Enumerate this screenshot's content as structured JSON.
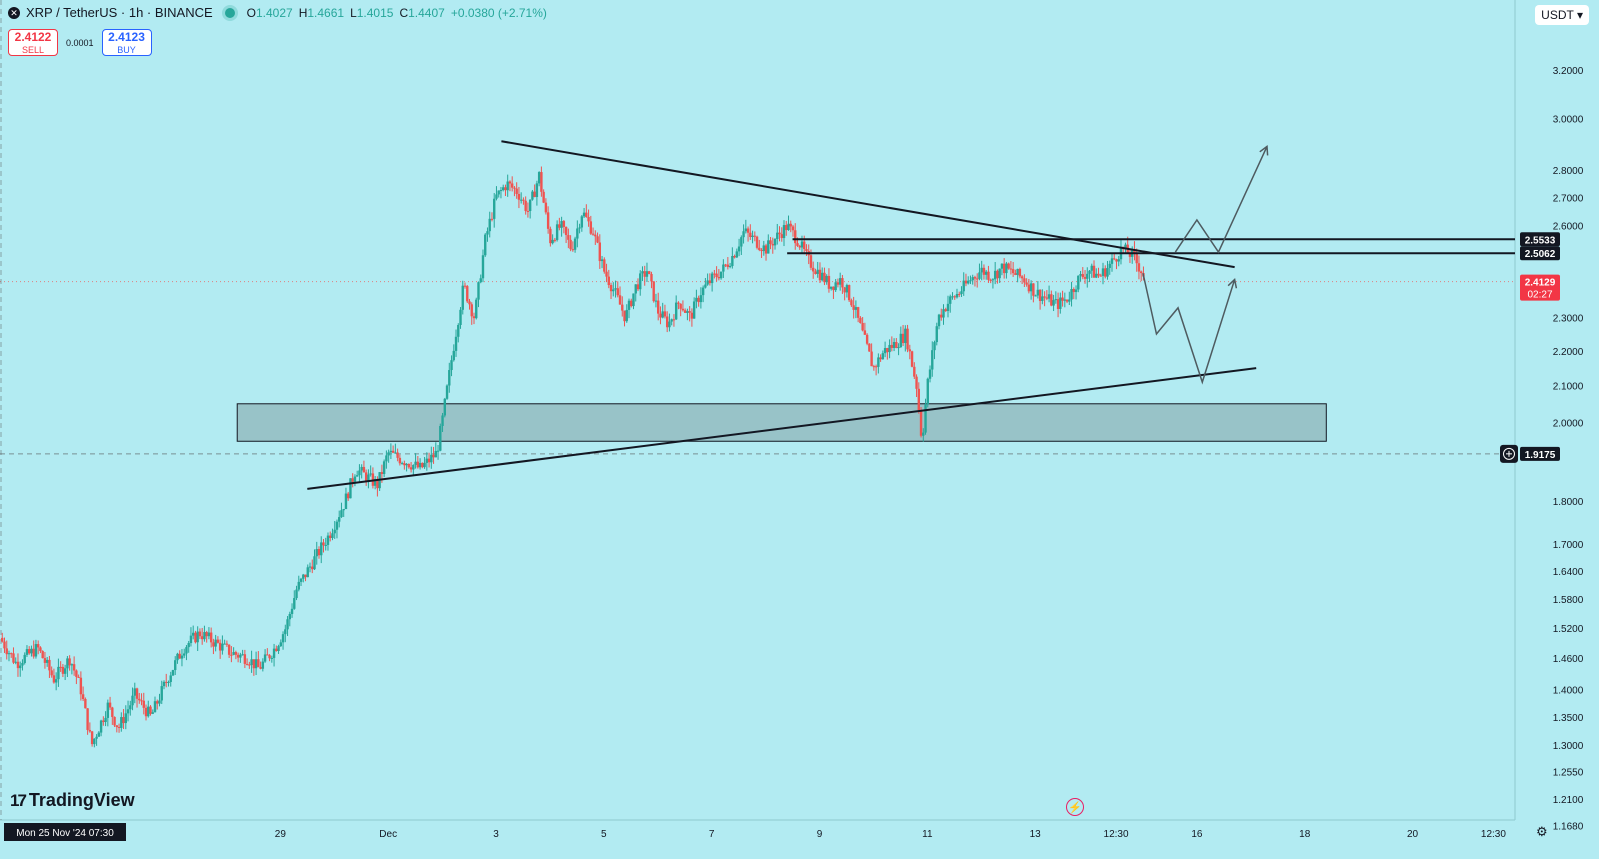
{
  "header": {
    "symbol_icon": "x-icon",
    "title": "XRP / TetherUS · 1h · BINANCE",
    "ohlc": [
      {
        "k": "O",
        "v": "1.4027"
      },
      {
        "k": "H",
        "v": "1.4661"
      },
      {
        "k": "L",
        "v": "1.4015"
      },
      {
        "k": "C",
        "v": "1.4407"
      },
      {
        "k": "",
        "v": "+0.0380 (+2.71%)"
      }
    ]
  },
  "trade": {
    "sell_price": "2.4122",
    "sell_label": "SELL",
    "spread": "0.0001",
    "buy_price": "2.4123",
    "buy_label": "BUY"
  },
  "currency": "USDT",
  "branding": "TradingView",
  "colors": {
    "background": "#b2ebf2",
    "up": "#26a69a",
    "down": "#ef5350",
    "line": "#131722",
    "zone": "#8fb5b9"
  },
  "chart_data": {
    "type": "candlestick",
    "y_scale": "log",
    "ylim": [
      1.15,
      3.3
    ],
    "y_ticks": [
      {
        "v": 3.2,
        "label": "3.2000"
      },
      {
        "v": 3.0,
        "label": "3.0000"
      },
      {
        "v": 2.8,
        "label": "2.8000"
      },
      {
        "v": 2.7,
        "label": "2.7000"
      },
      {
        "v": 2.6,
        "label": "2.6000"
      },
      {
        "v": 2.3,
        "label": "2.3000"
      },
      {
        "v": 2.2,
        "label": "2.2000"
      },
      {
        "v": 2.1,
        "label": "2.1000"
      },
      {
        "v": 2.0,
        "label": "2.0000"
      },
      {
        "v": 1.8,
        "label": "1.8000"
      },
      {
        "v": 1.7,
        "label": "1.7000"
      },
      {
        "v": 1.64,
        "label": "1.6400"
      },
      {
        "v": 1.58,
        "label": "1.5800"
      },
      {
        "v": 1.52,
        "label": "1.5200"
      },
      {
        "v": 1.46,
        "label": "1.4600"
      },
      {
        "v": 1.4,
        "label": "1.4000"
      },
      {
        "v": 1.35,
        "label": "1.3500"
      },
      {
        "v": 1.3,
        "label": "1.3000"
      },
      {
        "v": 1.255,
        "label": "1.2550"
      },
      {
        "v": 1.21,
        "label": "1.2100"
      },
      {
        "v": 1.168,
        "label": "1.1680"
      }
    ],
    "x_range": [
      -1.2,
      26.9
    ],
    "x_ticks": [
      {
        "v": 4,
        "label": "29"
      },
      {
        "v": 6,
        "label": "Dec"
      },
      {
        "v": 8,
        "label": "3"
      },
      {
        "v": 10,
        "label": "5"
      },
      {
        "v": 12,
        "label": "7"
      },
      {
        "v": 14,
        "label": "9"
      },
      {
        "v": 16,
        "label": "11"
      },
      {
        "v": 18,
        "label": "13"
      },
      {
        "v": 19.5,
        "label": "12:30"
      },
      {
        "v": 21,
        "label": "16"
      },
      {
        "v": 23,
        "label": "18"
      },
      {
        "v": 25,
        "label": "20"
      },
      {
        "v": 26.5,
        "label": "12:30"
      }
    ],
    "x_unit": "days from 25 Nov 2024 07:30",
    "date_badge": "Mon 25 Nov '24   07:30",
    "price_labels": [
      {
        "v": 2.5533,
        "label": "2.5533",
        "style": "dark"
      },
      {
        "v": 2.5062,
        "label": "2.5062",
        "style": "dark"
      },
      {
        "v": 2.4129,
        "label": "2.4129",
        "sub": "02:27",
        "style": "red"
      },
      {
        "v": 1.9175,
        "label": "1.9175",
        "style": "dark"
      }
    ],
    "current_price": 2.4129,
    "crosshair_price": 1.9175,
    "price_path": [
      [
        -1.2,
        1.5
      ],
      [
        -0.9,
        1.45
      ],
      [
        -0.5,
        1.48
      ],
      [
        -0.2,
        1.42
      ],
      [
        0.1,
        1.46
      ],
      [
        0.3,
        1.4
      ],
      [
        0.5,
        1.3
      ],
      [
        0.8,
        1.37
      ],
      [
        1.0,
        1.33
      ],
      [
        1.3,
        1.39
      ],
      [
        1.6,
        1.35
      ],
      [
        1.9,
        1.42
      ],
      [
        2.2,
        1.48
      ],
      [
        2.5,
        1.51
      ],
      [
        2.8,
        1.49
      ],
      [
        3.1,
        1.47
      ],
      [
        3.4,
        1.46
      ],
      [
        3.6,
        1.44
      ],
      [
        3.9,
        1.48
      ],
      [
        4.1,
        1.52
      ],
      [
        4.3,
        1.6
      ],
      [
        4.6,
        1.66
      ],
      [
        4.9,
        1.72
      ],
      [
        5.2,
        1.8
      ],
      [
        5.4,
        1.88
      ],
      [
        5.6,
        1.86
      ],
      [
        5.8,
        1.84
      ],
      [
        6.0,
        1.92
      ],
      [
        6.3,
        1.9
      ],
      [
        6.6,
        1.88
      ],
      [
        6.9,
        1.92
      ],
      [
        7.0,
        2.0
      ],
      [
        7.2,
        2.2
      ],
      [
        7.4,
        2.4
      ],
      [
        7.6,
        2.3
      ],
      [
        7.8,
        2.55
      ],
      [
        8.0,
        2.7
      ],
      [
        8.2,
        2.75
      ],
      [
        8.4,
        2.72
      ],
      [
        8.6,
        2.65
      ],
      [
        8.8,
        2.78
      ],
      [
        9.0,
        2.55
      ],
      [
        9.2,
        2.6
      ],
      [
        9.4,
        2.52
      ],
      [
        9.6,
        2.65
      ],
      [
        9.8,
        2.58
      ],
      [
        10.0,
        2.45
      ],
      [
        10.2,
        2.38
      ],
      [
        10.4,
        2.3
      ],
      [
        10.6,
        2.4
      ],
      [
        10.8,
        2.45
      ],
      [
        11.0,
        2.32
      ],
      [
        11.2,
        2.28
      ],
      [
        11.4,
        2.35
      ],
      [
        11.6,
        2.3
      ],
      [
        11.8,
        2.38
      ],
      [
        12.0,
        2.42
      ],
      [
        12.2,
        2.45
      ],
      [
        12.4,
        2.5
      ],
      [
        12.6,
        2.58
      ],
      [
        12.8,
        2.55
      ],
      [
        13.0,
        2.52
      ],
      [
        13.2,
        2.56
      ],
      [
        13.4,
        2.6
      ],
      [
        13.6,
        2.55
      ],
      [
        13.8,
        2.48
      ],
      [
        14.0,
        2.44
      ],
      [
        14.2,
        2.4
      ],
      [
        14.4,
        2.42
      ],
      [
        14.6,
        2.35
      ],
      [
        14.8,
        2.25
      ],
      [
        15.0,
        2.15
      ],
      [
        15.2,
        2.2
      ],
      [
        15.4,
        2.22
      ],
      [
        15.6,
        2.25
      ],
      [
        15.8,
        2.1
      ],
      [
        15.9,
        1.95
      ],
      [
        16.0,
        2.1
      ],
      [
        16.2,
        2.3
      ],
      [
        16.4,
        2.35
      ],
      [
        16.6,
        2.38
      ],
      [
        16.8,
        2.42
      ],
      [
        17.0,
        2.45
      ],
      [
        17.2,
        2.43
      ],
      [
        17.4,
        2.46
      ],
      [
        17.6,
        2.44
      ],
      [
        17.8,
        2.42
      ],
      [
        18.0,
        2.38
      ],
      [
        18.2,
        2.36
      ],
      [
        18.4,
        2.34
      ],
      [
        18.6,
        2.36
      ],
      [
        18.8,
        2.42
      ],
      [
        19.0,
        2.45
      ],
      [
        19.2,
        2.43
      ],
      [
        19.4,
        2.47
      ],
      [
        19.6,
        2.52
      ],
      [
        19.8,
        2.5
      ],
      [
        20.0,
        2.44
      ],
      [
        20.05,
        2.41
      ]
    ],
    "projection": [
      [
        20.0,
        2.44
      ],
      [
        20.25,
        2.25
      ],
      [
        20.65,
        2.33
      ],
      [
        21.1,
        2.11
      ],
      [
        21.7,
        2.42
      ]
    ],
    "projection_alt": [
      [
        20.6,
        2.51
      ],
      [
        21.0,
        2.62
      ],
      [
        21.4,
        2.51
      ],
      [
        22.3,
        2.89
      ]
    ],
    "trendlines": [
      {
        "name": "upper",
        "from": [
          8.1,
          2.91
        ],
        "to": [
          21.7,
          2.46
        ]
      },
      {
        "name": "lower",
        "from": [
          4.5,
          1.83
        ],
        "to": [
          22.1,
          2.15
        ]
      }
    ],
    "horizontal_lines": [
      {
        "v": 2.5533,
        "from": 13.5
      },
      {
        "v": 2.5062,
        "from": 13.4
      }
    ],
    "zone": {
      "from_x": 3.2,
      "to_x": 23.4,
      "top": 2.05,
      "bottom": 1.95
    }
  }
}
